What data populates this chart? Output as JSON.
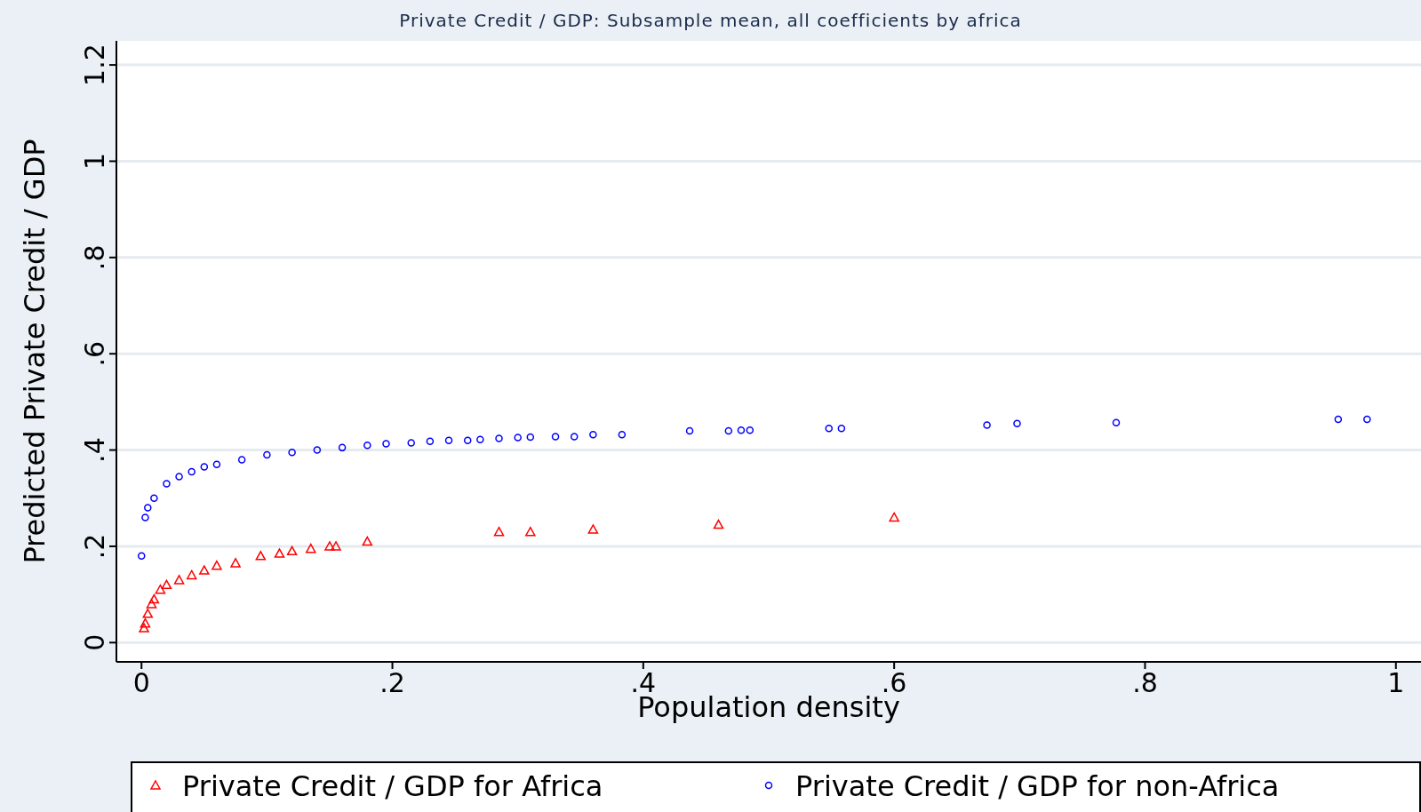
{
  "chart_data": {
    "type": "scatter",
    "title": "Private Credit / GDP: Subsample mean, all coefficients by africa",
    "xlabel": "Population density",
    "ylabel": "Predicted Private Credit / GDP",
    "xlim": [
      -0.02,
      1.02
    ],
    "ylim": [
      -0.04,
      1.25
    ],
    "xticks": [
      0,
      {
        "value": 0.2,
        "label": ".2"
      },
      {
        "value": 0.4,
        "label": ".4"
      },
      {
        "value": 0.6,
        "label": ".6"
      },
      {
        "value": 0.8,
        "label": ".8"
      },
      1
    ],
    "yticks": [
      0,
      {
        "value": 0.2,
        "label": ".2"
      },
      {
        "value": 0.4,
        "label": ".4"
      },
      {
        "value": 0.6,
        "label": ".6"
      },
      {
        "value": 0.8,
        "label": ".8"
      },
      1,
      {
        "value": 1.2,
        "label": "1.2"
      }
    ],
    "grid": "y",
    "legend": "bottom",
    "series": [
      {
        "name": "Private Credit / GDP for Africa",
        "color": "#ff0000",
        "marker": "triangle",
        "x": [
          0.002,
          0.003,
          0.005,
          0.008,
          0.01,
          0.015,
          0.02,
          0.03,
          0.04,
          0.05,
          0.06,
          0.075,
          0.095,
          0.11,
          0.12,
          0.135,
          0.15,
          0.155,
          0.18,
          0.285,
          0.31,
          0.36,
          0.46,
          0.6
        ],
        "values": [
          0.03,
          0.04,
          0.06,
          0.08,
          0.09,
          0.11,
          0.12,
          0.13,
          0.14,
          0.15,
          0.16,
          0.165,
          0.18,
          0.185,
          0.19,
          0.195,
          0.2,
          0.2,
          0.21,
          0.23,
          0.23,
          0.235,
          0.245,
          0.26
        ]
      },
      {
        "name": "Private Credit / GDP for non-Africa",
        "color": "#0000ff",
        "marker": "circle",
        "x": [
          0,
          0.003,
          0.005,
          0.01,
          0.02,
          0.03,
          0.04,
          0.05,
          0.06,
          0.08,
          0.1,
          0.12,
          0.14,
          0.16,
          0.18,
          0.195,
          0.215,
          0.23,
          0.245,
          0.26,
          0.27,
          0.285,
          0.3,
          0.31,
          0.33,
          0.345,
          0.36,
          0.383,
          0.437,
          0.468,
          0.478,
          0.485,
          0.548,
          0.558,
          0.674,
          0.698,
          0.777,
          0.954,
          0.977
        ],
        "values": [
          0.18,
          0.26,
          0.28,
          0.3,
          0.33,
          0.345,
          0.355,
          0.365,
          0.37,
          0.38,
          0.39,
          0.395,
          0.4,
          0.405,
          0.41,
          0.413,
          0.415,
          0.418,
          0.42,
          0.42,
          0.422,
          0.424,
          0.426,
          0.427,
          0.428,
          0.428,
          0.432,
          0.432,
          0.44,
          0.44,
          0.441,
          0.441,
          0.445,
          0.445,
          0.452,
          0.455,
          0.457,
          0.464,
          0.464
        ]
      }
    ]
  }
}
